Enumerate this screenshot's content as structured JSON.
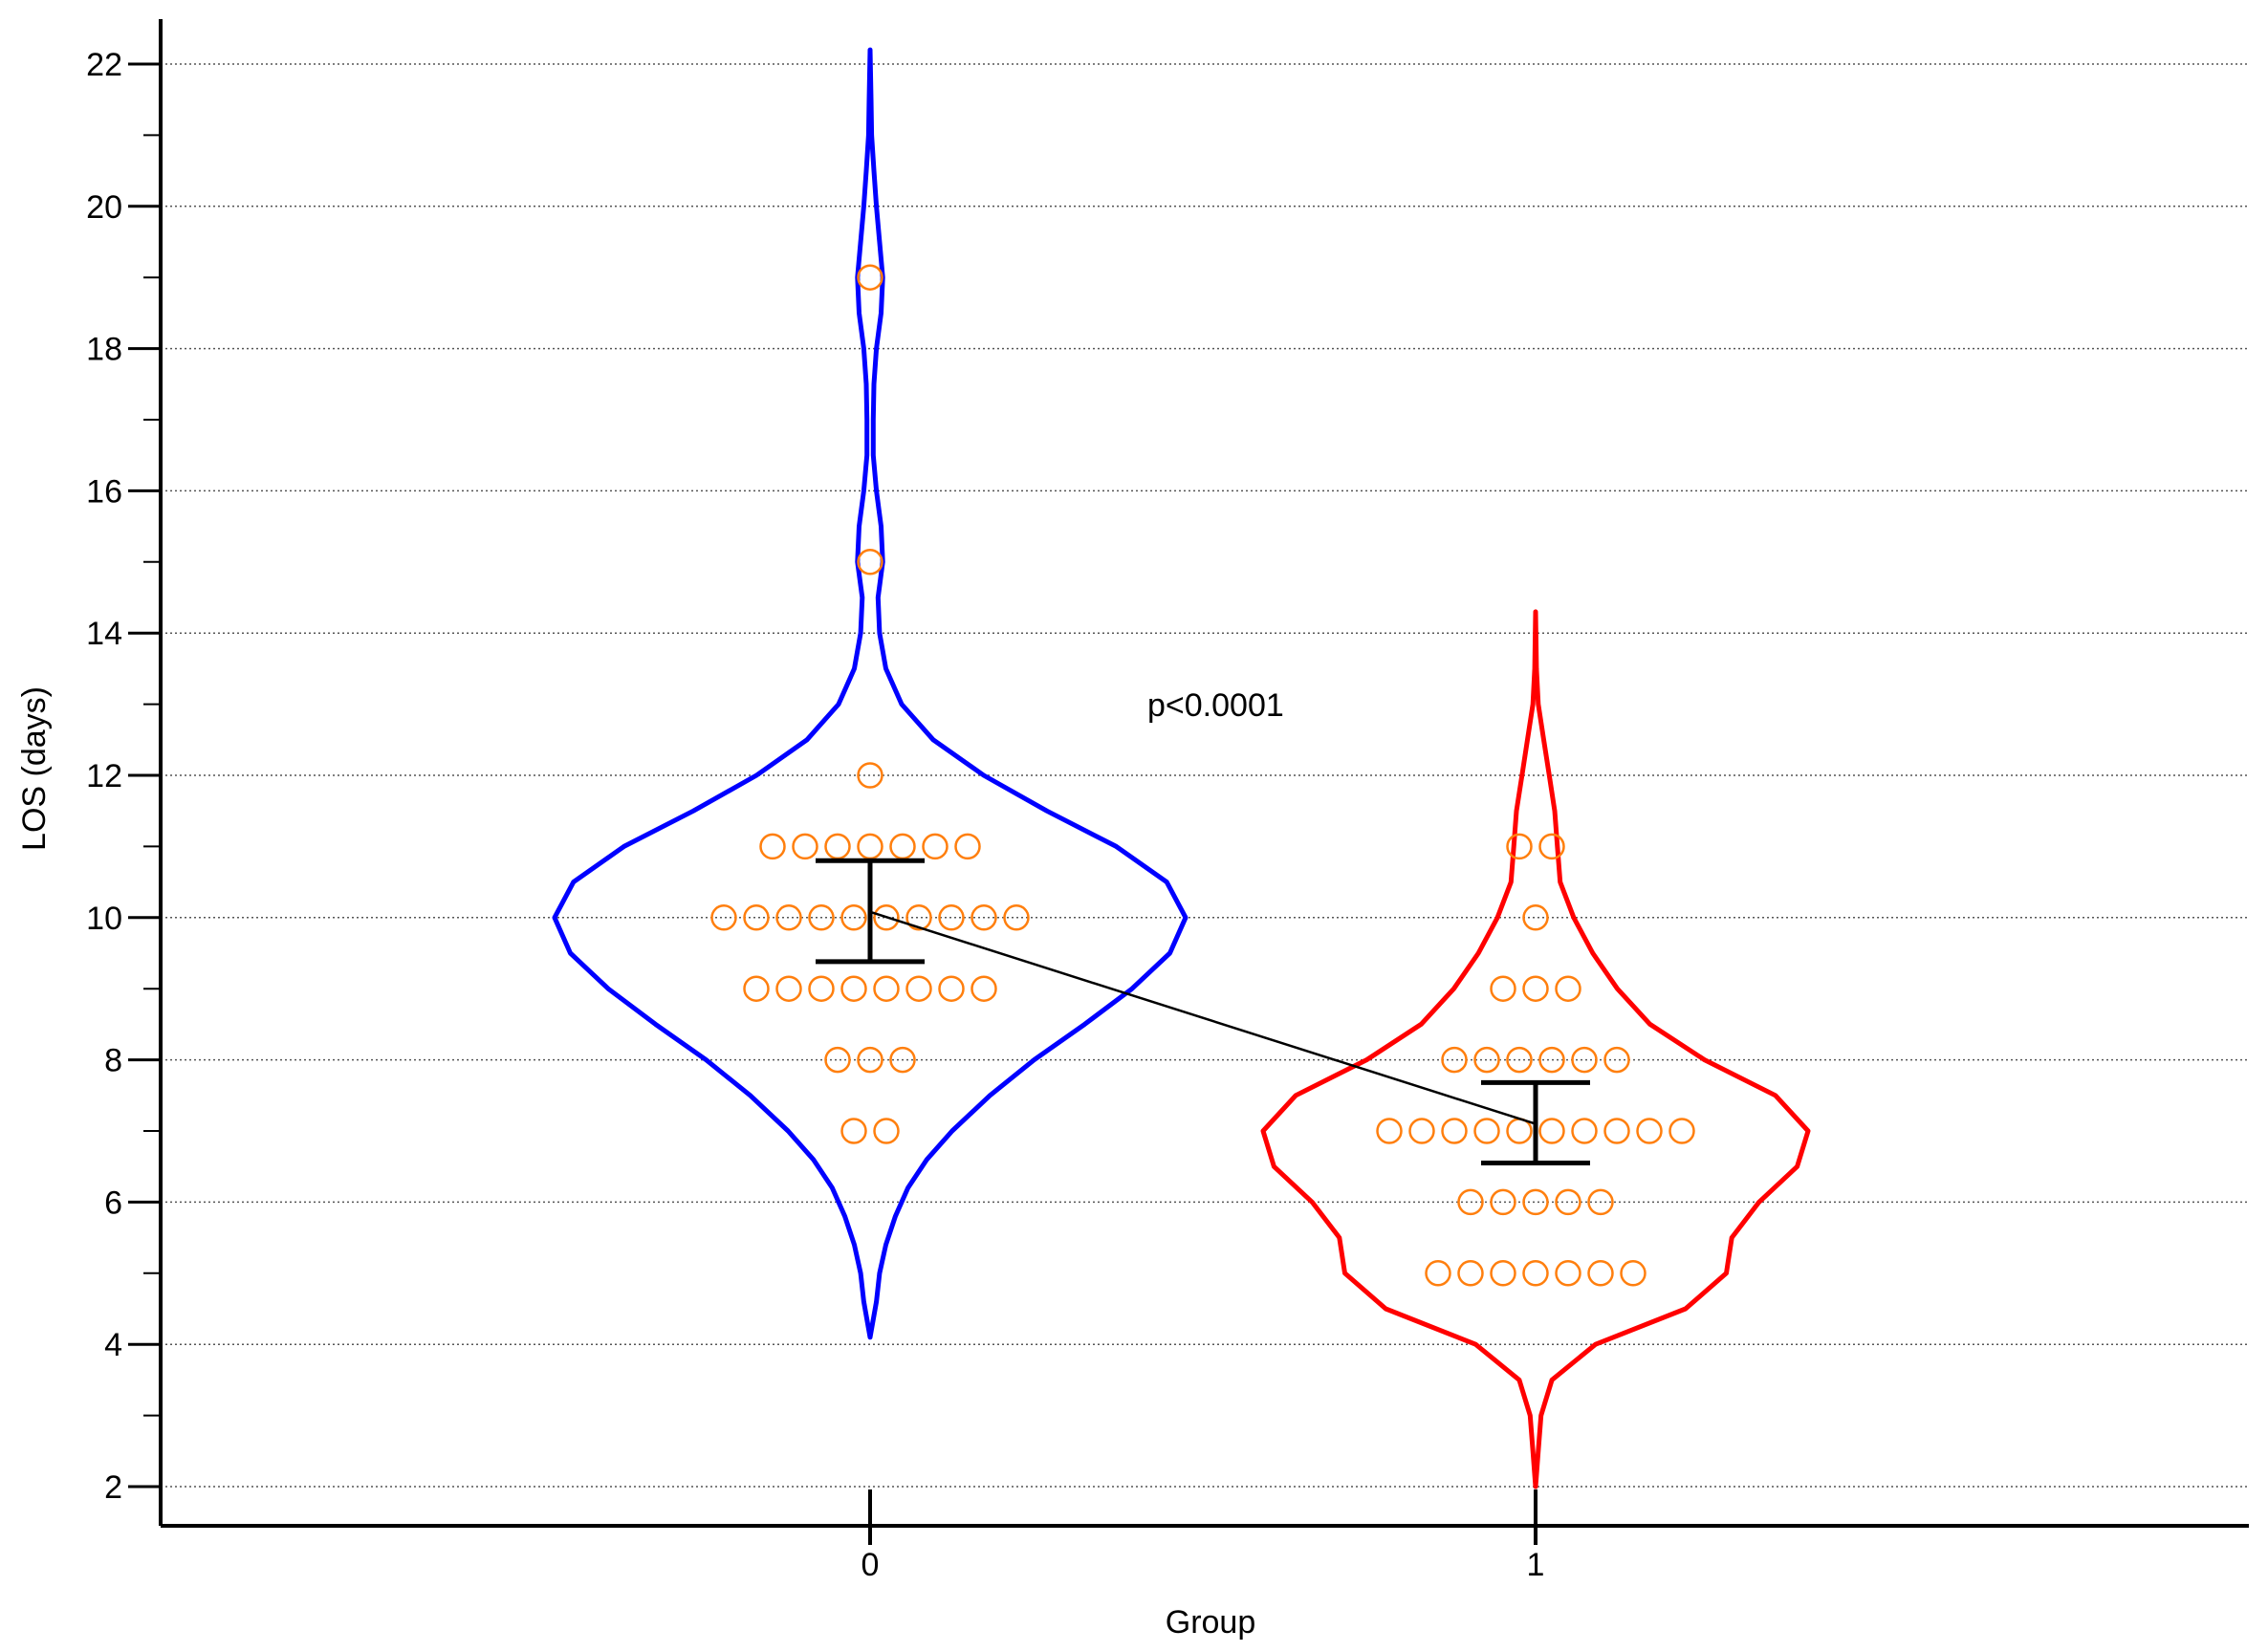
{
  "chart_data": {
    "type": "violin",
    "xlabel": "Group",
    "ylabel": "LOS (days)",
    "categories": [
      "0",
      "1"
    ],
    "ylim": [
      2,
      22
    ],
    "yticks": [
      2,
      4,
      6,
      8,
      10,
      12,
      14,
      16,
      18,
      20,
      22
    ],
    "grid": "horizontal dotted",
    "annotation": "p<0.0001",
    "colors": {
      "group0": "#0000ff",
      "group1": "#ff0000",
      "points": "#ff7f0e",
      "summary": "#000000"
    },
    "series": [
      {
        "category": "0",
        "violin_range": [
          4.1,
          22.2
        ],
        "points": [
          {
            "y": 19,
            "n": 1
          },
          {
            "y": 15,
            "n": 1
          },
          {
            "y": 12,
            "n": 1
          },
          {
            "y": 11,
            "n": 7
          },
          {
            "y": 10,
            "n": 10
          },
          {
            "y": 9,
            "n": 8
          },
          {
            "y": 8,
            "n": 3
          },
          {
            "y": 7,
            "n": 2
          }
        ],
        "density": [
          [
            4.1,
            0.0
          ],
          [
            4.6,
            0.02
          ],
          [
            5.0,
            0.03
          ],
          [
            5.4,
            0.05
          ],
          [
            5.8,
            0.08
          ],
          [
            6.2,
            0.12
          ],
          [
            6.6,
            0.18
          ],
          [
            7.0,
            0.26
          ],
          [
            7.5,
            0.38
          ],
          [
            8.0,
            0.52
          ],
          [
            8.5,
            0.68
          ],
          [
            9.0,
            0.83
          ],
          [
            9.5,
            0.95
          ],
          [
            10.0,
            1.0
          ],
          [
            10.5,
            0.94
          ],
          [
            11.0,
            0.78
          ],
          [
            11.5,
            0.56
          ],
          [
            12.0,
            0.36
          ],
          [
            12.5,
            0.2
          ],
          [
            13.0,
            0.1
          ],
          [
            13.5,
            0.05
          ],
          [
            14.0,
            0.03
          ],
          [
            14.5,
            0.025
          ],
          [
            15.0,
            0.04
          ],
          [
            15.5,
            0.035
          ],
          [
            16.0,
            0.02
          ],
          [
            16.5,
            0.01
          ],
          [
            17.0,
            0.01
          ],
          [
            17.5,
            0.012
          ],
          [
            18.0,
            0.02
          ],
          [
            18.5,
            0.035
          ],
          [
            19.0,
            0.04
          ],
          [
            19.5,
            0.03
          ],
          [
            20.0,
            0.02
          ],
          [
            20.5,
            0.012
          ],
          [
            21.0,
            0.005
          ],
          [
            21.5,
            0.003
          ],
          [
            22.2,
            0.0
          ]
        ],
        "mean": 10.08,
        "ci": [
          9.38,
          10.8
        ]
      },
      {
        "category": "1",
        "violin_range": [
          2.0,
          14.3
        ],
        "points": [
          {
            "y": 11,
            "n": 2
          },
          {
            "y": 10,
            "n": 1
          },
          {
            "y": 9,
            "n": 3
          },
          {
            "y": 8,
            "n": 6
          },
          {
            "y": 7,
            "n": 10
          },
          {
            "y": 6,
            "n": 5
          },
          {
            "y": 5,
            "n": 7
          }
        ],
        "density": [
          [
            2.0,
            0.0
          ],
          [
            2.5,
            0.01
          ],
          [
            3.0,
            0.02
          ],
          [
            3.5,
            0.06
          ],
          [
            4.0,
            0.22
          ],
          [
            4.5,
            0.55
          ],
          [
            5.0,
            0.7
          ],
          [
            5.5,
            0.72
          ],
          [
            6.0,
            0.82
          ],
          [
            6.5,
            0.96
          ],
          [
            7.0,
            1.0
          ],
          [
            7.5,
            0.88
          ],
          [
            8.0,
            0.62
          ],
          [
            8.5,
            0.42
          ],
          [
            9.0,
            0.3
          ],
          [
            9.5,
            0.21
          ],
          [
            10.0,
            0.14
          ],
          [
            10.5,
            0.09
          ],
          [
            11.0,
            0.08
          ],
          [
            11.5,
            0.07
          ],
          [
            12.0,
            0.05
          ],
          [
            12.5,
            0.03
          ],
          [
            13.0,
            0.01
          ],
          [
            13.5,
            0.003
          ],
          [
            14.3,
            0.0
          ]
        ],
        "mean": 7.1,
        "ci": [
          6.55,
          7.68
        ]
      }
    ]
  }
}
